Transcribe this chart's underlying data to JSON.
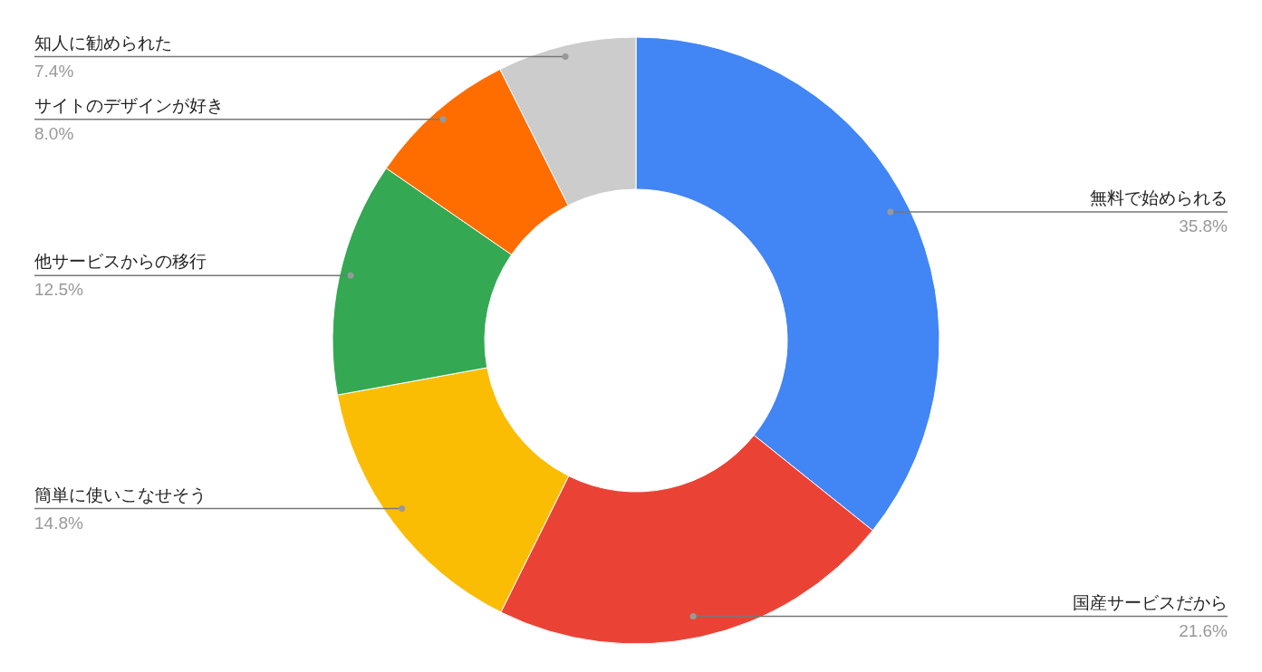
{
  "chart_data": {
    "type": "donut",
    "categories": [
      "無料で始められる",
      "国産サービスだから",
      "簡単に使いこなせそう",
      "他サービスからの移行",
      "サイトのデザインが好き",
      "知人に勧められた"
    ],
    "values": [
      35.8,
      21.6,
      14.8,
      12.5,
      8.0,
      7.4
    ],
    "value_labels": [
      "35.8%",
      "21.6%",
      "14.8%",
      "12.5%",
      "8.0%",
      "7.4%"
    ],
    "colors": [
      "#4285f4",
      "#ea4335",
      "#fbbc04",
      "#34a853",
      "#ff6d01",
      "#cccccc"
    ]
  }
}
